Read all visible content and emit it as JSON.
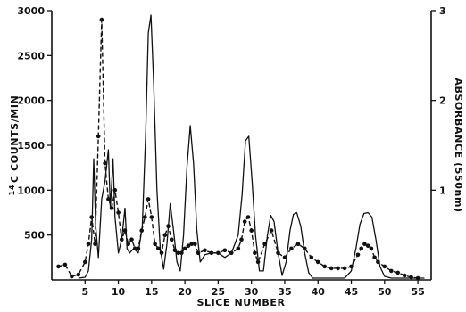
{
  "chart_data": {
    "type": "line",
    "xlabel": "SLICE NUMBER",
    "ylabel_prefix": "14",
    "ylabel": "C COUNTS/MIN",
    "y2label": "ABSORBANCE (550nm)",
    "xlim": [
      0,
      57
    ],
    "ylim": [
      0,
      3000
    ],
    "y2lim": [
      0,
      3
    ],
    "x_ticks": [
      5,
      10,
      15,
      20,
      25,
      30,
      35,
      40,
      45,
      50,
      55
    ],
    "y_ticks": [
      500,
      1000,
      1500,
      2000,
      2500,
      3000
    ],
    "y2_ticks": [
      1,
      2,
      3
    ],
    "series": [
      {
        "style": "solid line",
        "axis": "right",
        "x": [
          4,
          5,
          5.5,
          6.0,
          6.3,
          6.6,
          7.0,
          7.5,
          8.0,
          8.5,
          8.8,
          9.2,
          9.5,
          10.0,
          10.5,
          11.0,
          11.3,
          11.7,
          12.3,
          13.0,
          13.6,
          14.1,
          14.5,
          14.9,
          15.3,
          15.8,
          16.3,
          16.8,
          17.3,
          17.8,
          18.3,
          18.8,
          19.3,
          19.8,
          20.3,
          20.8,
          21.3,
          21.8,
          22.3,
          23,
          24,
          25,
          26,
          27,
          28,
          28.6,
          29.1,
          29.6,
          30.1,
          30.6,
          31.2,
          31.8,
          32.4,
          32.9,
          33.4,
          34.0,
          34.6,
          35.2,
          35.8,
          36.3,
          36.8,
          37.4,
          38.0,
          38.6,
          39.2,
          40,
          41,
          42,
          43,
          44,
          45,
          45.7,
          46.3,
          46.9,
          47.5,
          48.1,
          48.7,
          49.3,
          50,
          51,
          52,
          53,
          54,
          55,
          56
        ],
        "y": [
          0.02,
          0.03,
          0.1,
          0.45,
          1.35,
          0.6,
          0.25,
          0.9,
          1.1,
          1.45,
          0.8,
          1.35,
          0.7,
          0.3,
          0.45,
          0.8,
          0.35,
          0.3,
          0.35,
          0.3,
          0.6,
          1.6,
          2.75,
          2.95,
          2.2,
          1.0,
          0.35,
          0.12,
          0.4,
          0.85,
          0.55,
          0.2,
          0.1,
          0.5,
          1.25,
          1.72,
          1.3,
          0.55,
          0.2,
          0.28,
          0.3,
          0.3,
          0.25,
          0.3,
          0.5,
          0.95,
          1.55,
          1.6,
          1.1,
          0.5,
          0.1,
          0.1,
          0.5,
          0.72,
          0.65,
          0.3,
          0.05,
          0.2,
          0.55,
          0.73,
          0.75,
          0.6,
          0.3,
          0.08,
          0.02,
          0.02,
          0.02,
          0.02,
          0.02,
          0.02,
          0.1,
          0.35,
          0.62,
          0.74,
          0.75,
          0.7,
          0.45,
          0.15,
          0.04,
          0.02,
          0.02,
          0.02,
          0.02,
          0.02,
          0.02
        ]
      },
      {
        "style": "dashed line with dots",
        "axis": "left",
        "x": [
          1,
          2,
          3,
          4,
          5,
          5.5,
          6,
          6.5,
          7,
          7.5,
          8,
          8.5,
          9,
          9.5,
          10,
          10.5,
          11,
          11.5,
          12,
          12.5,
          13,
          13.5,
          14,
          14.5,
          15,
          15.5,
          16,
          16.5,
          17,
          17.5,
          18,
          18.5,
          19,
          19.5,
          20,
          20.5,
          21,
          21.5,
          22,
          23,
          24,
          25,
          26,
          27,
          28,
          28.5,
          29,
          29.5,
          30,
          30.5,
          31,
          32,
          33,
          34,
          35,
          36,
          37,
          38,
          39,
          40,
          41,
          42,
          43,
          44,
          45,
          46,
          46.5,
          47,
          47.5,
          48,
          48.5,
          49,
          50,
          51,
          52,
          53,
          54,
          55
        ],
        "y": [
          150,
          170,
          40,
          60,
          200,
          400,
          700,
          400,
          1600,
          2900,
          1300,
          900,
          800,
          1000,
          750,
          450,
          550,
          400,
          450,
          350,
          350,
          550,
          700,
          900,
          700,
          400,
          350,
          300,
          500,
          600,
          450,
          330,
          300,
          300,
          350,
          380,
          400,
          400,
          300,
          330,
          300,
          300,
          330,
          300,
          350,
          450,
          650,
          700,
          550,
          300,
          200,
          400,
          550,
          300,
          250,
          350,
          400,
          350,
          250,
          200,
          150,
          130,
          130,
          130,
          150,
          280,
          350,
          400,
          380,
          350,
          250,
          200,
          150,
          100,
          80,
          50,
          30,
          20
        ]
      }
    ]
  }
}
